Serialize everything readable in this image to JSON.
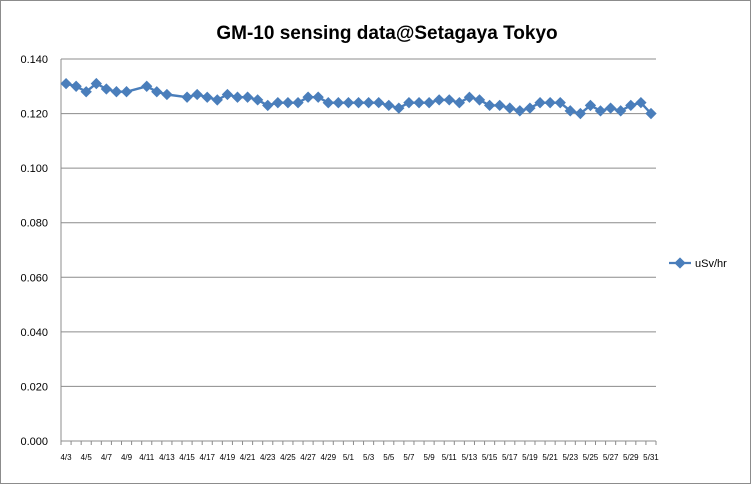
{
  "chart_data": {
    "type": "line",
    "title": "GM-10 sensing data@Setagaya Tokyo",
    "xlabel": "",
    "ylabel": "",
    "ylim": [
      0,
      0.14
    ],
    "yticks": [
      "0.000",
      "0.020",
      "0.040",
      "0.060",
      "0.080",
      "0.100",
      "0.120",
      "0.140"
    ],
    "grid": true,
    "legend_position": "right",
    "series_color": "#4a7ebb",
    "categories": [
      "4/3",
      "4/4",
      "4/5",
      "4/6",
      "4/7",
      "4/8",
      "4/9",
      "4/10",
      "4/11",
      "4/12",
      "4/13",
      "4/14",
      "4/15",
      "4/16",
      "4/17",
      "4/18",
      "4/19",
      "4/20",
      "4/21",
      "4/22",
      "4/23",
      "4/24",
      "4/25",
      "4/26",
      "4/27",
      "4/28",
      "4/29",
      "4/30",
      "5/1",
      "5/2",
      "5/3",
      "5/4",
      "5/5",
      "5/6",
      "5/7",
      "5/8",
      "5/9",
      "5/10",
      "5/11",
      "5/12",
      "5/13",
      "5/14",
      "5/15",
      "5/16",
      "5/17",
      "5/18",
      "5/19",
      "5/20",
      "5/21",
      "5/22",
      "5/23",
      "5/24",
      "5/25",
      "5/26",
      "5/27",
      "5/28",
      "5/29",
      "5/30",
      "5/31"
    ],
    "x_tick_labels": [
      "4/3",
      "4/5",
      "4/7",
      "4/9",
      "4/11",
      "4/13",
      "4/15",
      "4/17",
      "4/19",
      "4/21",
      "4/23",
      "4/25",
      "4/27",
      "4/29",
      "5/1",
      "5/3",
      "5/5",
      "5/7",
      "5/9",
      "5/11",
      "5/13",
      "5/15",
      "5/17",
      "5/19",
      "5/21",
      "5/23",
      "5/25",
      "5/27",
      "5/29",
      "5/31"
    ],
    "series": [
      {
        "name": "uSv/hr",
        "values": [
          0.131,
          0.13,
          0.128,
          0.131,
          0.129,
          0.128,
          0.128,
          null,
          0.13,
          0.128,
          0.127,
          null,
          0.126,
          0.127,
          0.126,
          0.125,
          0.127,
          0.126,
          0.126,
          0.125,
          0.123,
          0.124,
          0.124,
          0.124,
          0.126,
          0.126,
          0.124,
          0.124,
          0.124,
          0.124,
          0.124,
          0.124,
          0.123,
          0.122,
          0.124,
          0.124,
          0.124,
          0.125,
          0.125,
          0.124,
          0.126,
          0.125,
          0.123,
          0.123,
          0.122,
          0.121,
          0.122,
          0.124,
          0.124,
          0.124,
          0.121,
          0.12,
          0.123,
          0.121,
          0.122,
          0.121,
          0.123,
          0.124,
          0.12
        ]
      }
    ]
  }
}
